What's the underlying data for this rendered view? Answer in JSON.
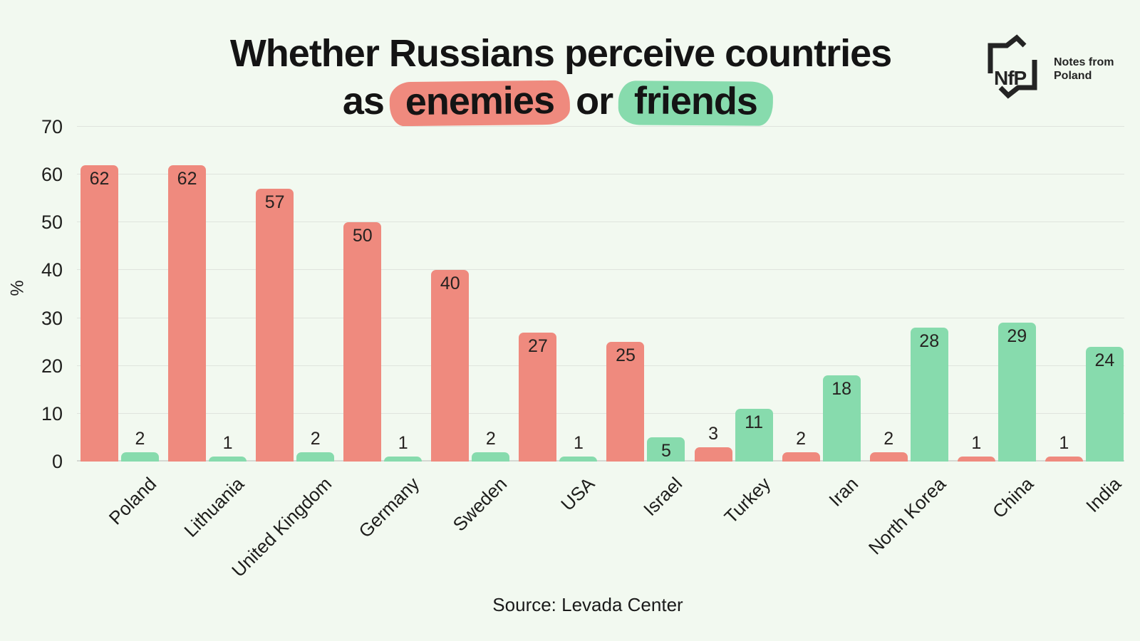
{
  "title": {
    "line1": "Whether Russians perceive countries",
    "line2_prefix": "as",
    "highlight_enemies": "enemies",
    "line2_middle": "or",
    "highlight_friends": "friends"
  },
  "logo": {
    "mark_text": "NfP",
    "name_line1": "Notes from",
    "name_line2": "Poland"
  },
  "source": "Source: Levada Center",
  "colors": {
    "background": "#F2F9F0",
    "enemies": "#EF8A7E",
    "friends": "#87DBAD",
    "grid": "#DFE4DD",
    "axis": "#D4D8D2",
    "text": "#1A1A1A"
  },
  "chart_data": {
    "type": "bar",
    "title": "Whether Russians perceive countries as enemies or friends",
    "categories": [
      "Poland",
      "Lithuania",
      "United Kingdom",
      "Germany",
      "Sweden",
      "USA",
      "Israel",
      "Turkey",
      "Iran",
      "North Korea",
      "China",
      "India"
    ],
    "series": [
      {
        "name": "enemies",
        "color": "#EF8A7E",
        "values": [
          62,
          62,
          57,
          50,
          40,
          27,
          25,
          3,
          2,
          2,
          1,
          1
        ]
      },
      {
        "name": "friends",
        "color": "#87DBAD",
        "values": [
          2,
          1,
          2,
          1,
          2,
          1,
          5,
          11,
          18,
          28,
          29,
          24
        ]
      }
    ],
    "xlabel": "",
    "ylabel": "%",
    "ylim": [
      0,
      70
    ],
    "yticks": [
      0,
      10,
      20,
      30,
      40,
      50,
      60,
      70
    ],
    "grid": "horizontal",
    "legend": "title-highlights",
    "value_labels": true,
    "source": "Source: Levada Center"
  }
}
